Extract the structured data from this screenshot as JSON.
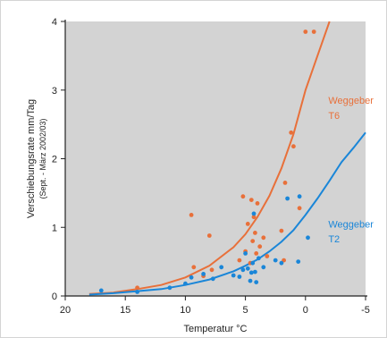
{
  "chart_data": {
    "type": "scatter",
    "xlabel": "Temperatur °C",
    "ylabel": "Verschiebungsrate mm/Tag",
    "ylabel_sub": "(Sept. - März 2002/03)",
    "xlim": [
      20,
      -5
    ],
    "ylim": [
      0,
      4
    ],
    "x_ticks": [
      20,
      15,
      10,
      5,
      0,
      -5
    ],
    "y_ticks": [
      0,
      1,
      2,
      3,
      4
    ],
    "x_tick_labels": [
      "20",
      "15",
      "10",
      "5",
      "0",
      "-5"
    ],
    "y_tick_labels": [
      "0",
      "1",
      "2",
      "3",
      "4"
    ],
    "grid": false,
    "background_color": "#d3d3d3",
    "series": [
      {
        "name": "Weggeber T6",
        "color": "#e8703a",
        "points": [
          [
            14,
            0.12
          ],
          [
            9.5,
            1.18
          ],
          [
            9.3,
            0.42
          ],
          [
            8.5,
            0.29
          ],
          [
            8,
            0.88
          ],
          [
            7.8,
            0.38
          ],
          [
            5.5,
            0.52
          ],
          [
            5.2,
            1.45
          ],
          [
            5,
            0.65
          ],
          [
            4.8,
            1.05
          ],
          [
            4.6,
            0.48
          ],
          [
            4.5,
            1.4
          ],
          [
            4.4,
            0.8
          ],
          [
            4.3,
            1.15
          ],
          [
            4.2,
            0.92
          ],
          [
            4.1,
            0.62
          ],
          [
            4,
            1.35
          ],
          [
            3.8,
            0.72
          ],
          [
            3.5,
            0.85
          ],
          [
            3.2,
            0.58
          ],
          [
            2,
            0.95
          ],
          [
            1.8,
            0.52
          ],
          [
            1.7,
            1.65
          ],
          [
            1.2,
            2.38
          ],
          [
            1,
            2.18
          ],
          [
            0.5,
            1.28
          ],
          [
            0,
            3.85
          ],
          [
            -0.7,
            3.85
          ]
        ],
        "fit": [
          [
            18,
            0.03
          ],
          [
            16,
            0.05
          ],
          [
            14,
            0.1
          ],
          [
            12,
            0.16
          ],
          [
            10,
            0.27
          ],
          [
            8,
            0.44
          ],
          [
            6,
            0.71
          ],
          [
            5,
            0.9
          ],
          [
            4,
            1.15
          ],
          [
            3,
            1.46
          ],
          [
            2,
            1.86
          ],
          [
            1,
            2.36
          ],
          [
            0,
            3.0
          ],
          [
            -1,
            3.5
          ],
          [
            -2,
            4.0
          ]
        ]
      },
      {
        "name": "Weggeber T2",
        "color": "#1a86d8",
        "points": [
          [
            17,
            0.08
          ],
          [
            14,
            0.06
          ],
          [
            11.3,
            0.12
          ],
          [
            10,
            0.18
          ],
          [
            9.5,
            0.27
          ],
          [
            8.5,
            0.32
          ],
          [
            7.7,
            0.25
          ],
          [
            7,
            0.42
          ],
          [
            6,
            0.3
          ],
          [
            5.5,
            0.28
          ],
          [
            5.2,
            0.38
          ],
          [
            5,
            0.62
          ],
          [
            4.8,
            0.4
          ],
          [
            4.6,
            0.22
          ],
          [
            4.5,
            0.34
          ],
          [
            4.4,
            0.48
          ],
          [
            4.3,
            1.2
          ],
          [
            4.2,
            0.35
          ],
          [
            4.1,
            0.2
          ],
          [
            3.9,
            0.55
          ],
          [
            3.5,
            0.42
          ],
          [
            2.5,
            0.52
          ],
          [
            2,
            0.48
          ],
          [
            1.5,
            1.42
          ],
          [
            0.6,
            0.5
          ],
          [
            0.5,
            1.45
          ],
          [
            -0.2,
            0.85
          ]
        ],
        "fit": [
          [
            18,
            0.02
          ],
          [
            16,
            0.04
          ],
          [
            14,
            0.07
          ],
          [
            12,
            0.1
          ],
          [
            10,
            0.16
          ],
          [
            8,
            0.24
          ],
          [
            6,
            0.36
          ],
          [
            5,
            0.44
          ],
          [
            4,
            0.53
          ],
          [
            3,
            0.65
          ],
          [
            2,
            0.79
          ],
          [
            1,
            0.96
          ],
          [
            0,
            1.18
          ],
          [
            -1,
            1.42
          ],
          [
            -2,
            1.68
          ],
          [
            -3,
            1.95
          ],
          [
            -4,
            2.16
          ],
          [
            -5,
            2.38
          ]
        ]
      }
    ],
    "annotations": [
      {
        "text": "Weggeber",
        "series": 0,
        "x": -1.9,
        "y": 2.8
      },
      {
        "text": "T6",
        "series": 0,
        "x": -1.9,
        "y": 2.58
      },
      {
        "text": "Weggeber",
        "series": 1,
        "x": -1.9,
        "y": 1.0
      },
      {
        "text": "T2",
        "series": 1,
        "x": -1.9,
        "y": 0.78
      }
    ]
  }
}
